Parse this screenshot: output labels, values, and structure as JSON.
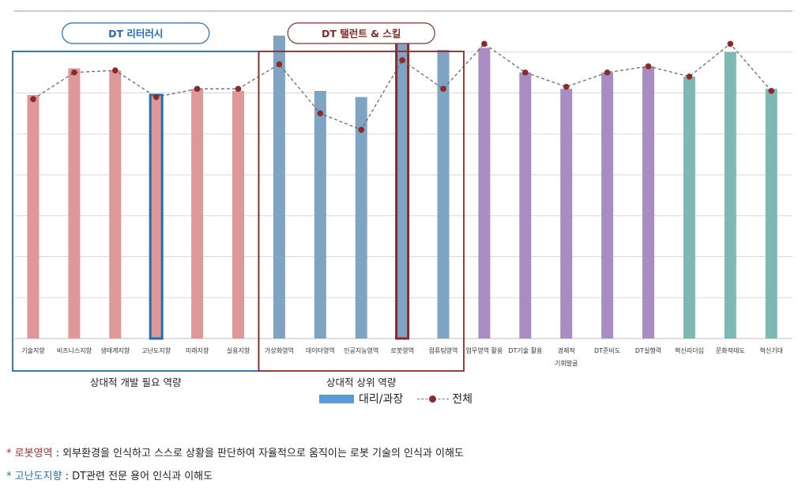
{
  "chart_data": {
    "type": "bar",
    "categories": [
      "기술지향",
      "비즈니스지향",
      "생태계지향",
      "고난도지향",
      "미래지향",
      "실용지향",
      "가상화영역",
      "데이터영역",
      "인공지능영역",
      "로봇영역",
      "컴퓨팅영역",
      "업무영역 활용",
      "DT기술 활용",
      "경제적 기회발굴",
      "DT준비도",
      "DT실행력",
      "혁신리더십",
      "문화적태도",
      "혁신기대"
    ],
    "series": [
      {
        "name": "대리/과장",
        "type": "bar",
        "values": [
          59.5,
          66,
          65.5,
          59.5,
          61,
          60.5,
          74,
          60.5,
          59,
          74.5,
          70.5,
          71,
          65,
          61,
          65,
          66.5,
          64,
          70,
          61
        ]
      },
      {
        "name": "전체",
        "type": "line",
        "values": [
          58.5,
          65,
          65.5,
          59,
          61,
          61,
          67,
          55,
          51,
          68,
          61,
          72,
          65,
          61.5,
          65,
          66.5,
          64,
          72,
          60.5
        ]
      }
    ],
    "bar_colors": [
      "#de9897",
      "#de9897",
      "#de9897",
      "#de9897",
      "#de9897",
      "#de9897",
      "#7fa3c3",
      "#7fa3c3",
      "#7fa3c3",
      "#7fa3c3",
      "#7fa3c3",
      "#a98cc2",
      "#a98cc2",
      "#a98cc2",
      "#a98cc2",
      "#a98cc2",
      "#7db8b4",
      "#7db8b4",
      "#7db8b4"
    ],
    "highlighted": [
      "고난도지향",
      "로봇영역"
    ],
    "ylim": [
      0,
      80
    ],
    "gridlines": 8,
    "groups": [
      {
        "pill": "DT 리터러시",
        "label": "상대적 개발 필요 역량",
        "color": "#1f6fb0",
        "start": 0,
        "end": 5
      },
      {
        "pill": "DT 탤런트 & 스킬",
        "label": "상대적 상위 역량",
        "color": "#8b2a2a",
        "start": 6,
        "end": 10
      }
    ],
    "legend": {
      "bar_label": "대리/과장",
      "line_label": "전체",
      "bar_color": "#5b9bd5",
      "line_color": "#8b2a2a"
    }
  },
  "notes": [
    {
      "asterisk": "*",
      "term": "로봇영역",
      "text": " : 외부환경을 인식하고 스스로 상황을 판단하여 자율적으로 움직이는 로봇 기술의 인식과 이해도"
    },
    {
      "asterisk": "*",
      "term": "고난도지향",
      "text": " : DT관련 전문 용어 인식과 이해도"
    }
  ]
}
